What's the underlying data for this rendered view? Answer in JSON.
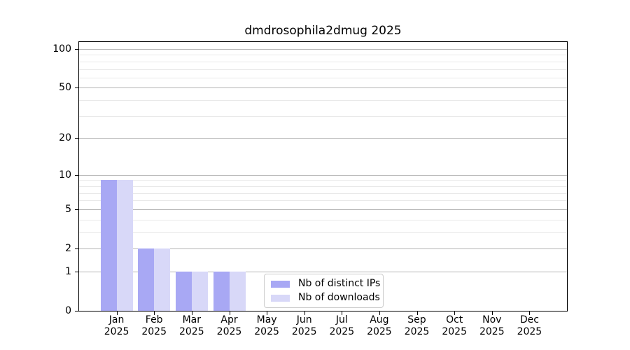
{
  "figure": {
    "background": "#ffffff"
  },
  "chart_data": {
    "type": "bar",
    "title": "dmdrosophila2dmug 2025",
    "categories": [
      "Jan",
      "Feb",
      "Mar",
      "Apr",
      "May",
      "Jun",
      "Jul",
      "Aug",
      "Sep",
      "Oct",
      "Nov",
      "Dec"
    ],
    "x_year": "2025",
    "series": [
      {
        "name": "Nb of distinct IPs",
        "color": "#a8a8f4",
        "values": [
          9,
          2,
          1,
          1,
          0,
          0,
          0,
          0,
          0,
          0,
          0,
          0
        ]
      },
      {
        "name": "Nb of downloads",
        "color": "#d8d8f8",
        "values": [
          9,
          2,
          1,
          1,
          0,
          0,
          0,
          0,
          0,
          0,
          0,
          0
        ]
      }
    ],
    "xlabel": "",
    "ylabel": "",
    "y_axis": {
      "scale": "log10(value+1)",
      "major_ticks": [
        0,
        1,
        2,
        5,
        10,
        20,
        50,
        100
      ],
      "minor_gridlines": [
        3,
        4,
        6,
        7,
        8,
        9,
        30,
        40,
        60,
        70,
        80,
        90
      ],
      "range": [
        0,
        100
      ]
    },
    "grid": true,
    "legend": {
      "position": "lower center"
    },
    "colors": {
      "major_grid": "#b4b4b4",
      "minor_grid": "#e9e9e9",
      "axis": "#000000",
      "text": "#000000"
    }
  }
}
